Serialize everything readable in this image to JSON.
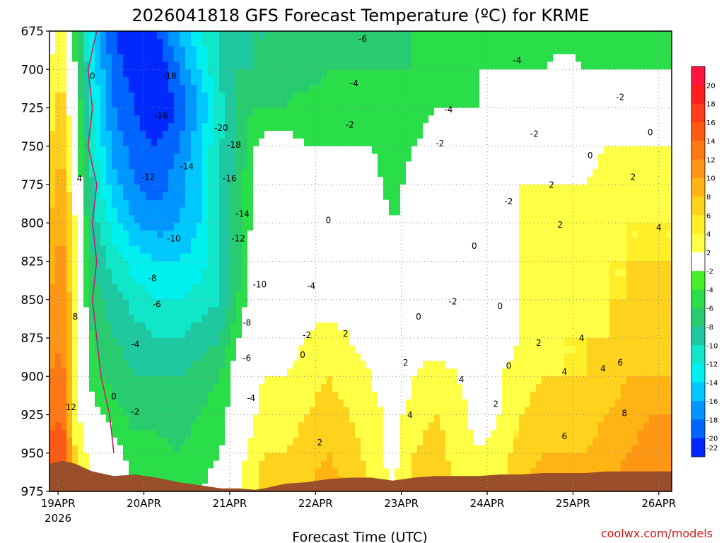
{
  "chart_data": {
    "type": "heatmap",
    "title": "2026041818 GFS Forecast Temperature (ºC) for KRME",
    "xlabel": "Forecast Time (UTC)",
    "ylabel": "",
    "credit": "coolwx.com/models",
    "y_axis": {
      "ticks": [
        675,
        700,
        725,
        750,
        775,
        800,
        825,
        850,
        875,
        900,
        925,
        950,
        975
      ],
      "range": [
        675,
        975
      ]
    },
    "x_axis": {
      "ticks": [
        "19APR",
        "20APR",
        "21APR",
        "22APR",
        "23APR",
        "24APR",
        "25APR",
        "26APR"
      ],
      "first_tick_sublabel": "2026"
    },
    "colorbar": {
      "levels": [
        20,
        18,
        16,
        14,
        12,
        10,
        8,
        6,
        4,
        2,
        -2,
        -4,
        -6,
        -8,
        -10,
        -12,
        -14,
        -16,
        -18,
        -20,
        -22
      ],
      "labels": [
        "20",
        "18",
        "16",
        "14",
        "12",
        "10",
        "8",
        "6",
        "4",
        "2",
        "-2",
        "-4",
        "-6",
        "-8",
        "-10",
        "-12",
        "-14",
        "-16",
        "-18",
        "-20",
        "-22"
      ],
      "colors": [
        "#ff1540",
        "#ff1e1e",
        "#ff3c1c",
        "#ff5a14",
        "#ff7814",
        "#ff9614",
        "#ffb414",
        "#ffd21e",
        "#ffee28",
        "#ffff46",
        "#ffffff",
        "#46f028",
        "#2ade4a",
        "#28cc6e",
        "#1ec8a0",
        "#10e6c8",
        "#00f0f0",
        "#00c8ff",
        "#0096ff",
        "#0064ff",
        "#0028ff"
      ]
    },
    "time_values": [
      0,
      0.15,
      0.3,
      0.5,
      0.75,
      1.0,
      1.25,
      1.5,
      1.75,
      2.0,
      2.2,
      2.4,
      2.5,
      2.75,
      3.0,
      3.25,
      3.5,
      3.75,
      4.0,
      4.25,
      4.5,
      4.75,
      5.0,
      5.25,
      5.5,
      5.75,
      6.0,
      6.25,
      6.5,
      6.75,
      7.0,
      7.25
    ],
    "pressure_levels": [
      675,
      700,
      725,
      750,
      775,
      800,
      825,
      850,
      875,
      900,
      925,
      950,
      975
    ],
    "temperature_grid": [
      [
        1,
        3,
        -3,
        -12,
        -18,
        -20,
        -18,
        -14,
        -10,
        -8,
        -7,
        -6,
        -6,
        -6,
        -5,
        -5,
        -5,
        -5,
        -5,
        -4,
        -4,
        -3,
        -3,
        -3,
        -3,
        -3,
        -3,
        -3,
        -3,
        -3,
        -3,
        -3
      ],
      [
        2,
        4,
        -2,
        -11,
        -17,
        -19,
        -20,
        -16,
        -12,
        -7,
        -6,
        -6,
        -6,
        -5,
        -5,
        -4,
        -4,
        -4,
        -4,
        -4,
        -3,
        -3,
        -2,
        -2,
        -2,
        -2,
        -1,
        -2,
        -2,
        -2,
        -2,
        -2
      ],
      [
        3,
        5,
        -1,
        -10,
        -16,
        -18,
        -20,
        -18,
        -14,
        -9,
        -5,
        -4,
        -4,
        -4,
        -3,
        -3,
        -3,
        -3,
        -3,
        -3,
        -2,
        -2,
        -2,
        -1,
        -1,
        -1,
        0,
        -1,
        -1,
        -1,
        -1,
        -1
      ],
      [
        4,
        6,
        0,
        -9,
        -15,
        -17,
        -18,
        -16,
        -12,
        -8,
        -6,
        -2,
        -1,
        -1,
        -2,
        -2,
        -2,
        -2,
        -3,
        -2,
        -1,
        -1,
        -2,
        0,
        1,
        1,
        1,
        1,
        2,
        2,
        2,
        2
      ],
      [
        5,
        7,
        1,
        -8,
        -13,
        -16,
        -17,
        -15,
        -12,
        -8,
        -5,
        -1,
        0,
        0,
        0,
        1,
        -1,
        -1,
        -3,
        -1,
        0,
        0,
        -2,
        1,
        2,
        2,
        2,
        2,
        3,
        3,
        3,
        3
      ],
      [
        6,
        8,
        2,
        -7,
        -11,
        -14,
        -15,
        -14,
        -12,
        -8,
        -5,
        -1,
        0,
        1,
        1,
        1,
        0,
        0,
        -2,
        -1,
        0,
        0,
        -1,
        1,
        2,
        3,
        3,
        3,
        3,
        4,
        4,
        4
      ],
      [
        7,
        9,
        2,
        -6,
        -9,
        -11,
        -12,
        -12,
        -11,
        -8,
        -5,
        0,
        1,
        1,
        1,
        1,
        0,
        0,
        -2,
        0,
        0,
        0,
        -1,
        1,
        2,
        3,
        3,
        3,
        4,
        4,
        4,
        4
      ],
      [
        8,
        10,
        3,
        -5,
        -7,
        -9,
        -10,
        -10,
        -9,
        -8,
        -4,
        1,
        2,
        1,
        1,
        1,
        1,
        1,
        -1,
        0,
        0,
        0,
        0,
        1,
        2,
        3,
        3,
        3,
        4,
        4,
        5,
        5
      ],
      [
        9,
        10,
        3,
        -4,
        -6,
        -7,
        -8,
        -8,
        -7,
        -6,
        -2,
        1,
        2,
        1,
        2,
        3,
        2,
        1,
        0,
        1,
        1,
        1,
        1,
        1,
        2,
        3,
        4,
        4,
        4,
        5,
        5,
        5
      ],
      [
        10,
        11,
        3,
        -3,
        -5,
        -6,
        -6,
        -6,
        -5,
        -4,
        0,
        1,
        2,
        2,
        3,
        4,
        3,
        2,
        0,
        2,
        3,
        2,
        1,
        2,
        3,
        4,
        4,
        4,
        5,
        6,
        6,
        6
      ],
      [
        11,
        12,
        3,
        -1,
        -3,
        -5,
        -5,
        -5,
        -4,
        -3,
        0,
        2,
        3,
        3,
        4,
        5,
        4,
        3,
        1,
        3,
        4,
        3,
        1,
        2,
        4,
        5,
        5,
        5,
        6,
        7,
        8,
        8
      ],
      [
        13,
        14,
        4,
        1,
        -1,
        -3,
        -3,
        -4,
        -3,
        -2,
        1,
        3,
        4,
        4,
        5,
        6,
        5,
        3,
        1,
        4,
        5,
        3,
        2,
        3,
        5,
        6,
        6,
        6,
        7,
        8,
        9,
        9
      ],
      [
        14,
        15,
        4,
        2,
        0,
        -2,
        -2,
        -3,
        -2,
        -1,
        2,
        4,
        5,
        5,
        6,
        7,
        6,
        4,
        2,
        5,
        6,
        4,
        3,
        4,
        6,
        7,
        7,
        7,
        8,
        9,
        10,
        10
      ]
    ],
    "terrain_pressure": [
      957,
      955,
      957,
      962,
      965,
      964,
      966,
      969,
      971,
      973,
      973,
      974,
      973,
      970,
      969,
      967,
      966,
      966,
      968,
      966,
      965,
      965,
      965,
      964,
      964,
      963,
      963,
      963,
      962,
      962,
      962,
      962
    ],
    "freezing_line": [
      [
        0.55,
        675
      ],
      [
        0.45,
        700
      ],
      [
        0.5,
        725
      ],
      [
        0.45,
        750
      ],
      [
        0.55,
        775
      ],
      [
        0.5,
        800
      ],
      [
        0.55,
        825
      ],
      [
        0.5,
        850
      ],
      [
        0.55,
        875
      ],
      [
        0.6,
        900
      ],
      [
        0.7,
        925
      ],
      [
        0.75,
        950
      ]
    ],
    "contour_labels": [
      {
        "text": "0",
        "t": 0.5,
        "p": 706
      },
      {
        "text": "4",
        "t": 0.35,
        "p": 773
      },
      {
        "text": "8",
        "t": 0.3,
        "p": 863
      },
      {
        "text": "12",
        "t": 0.25,
        "p": 922
      },
      {
        "text": "0",
        "t": 0.75,
        "p": 915
      },
      {
        "text": "-2",
        "t": 1.0,
        "p": 925
      },
      {
        "text": "-18",
        "t": 1.4,
        "p": 706
      },
      {
        "text": "-16",
        "t": 1.3,
        "p": 732
      },
      {
        "text": "-14",
        "t": 1.6,
        "p": 765
      },
      {
        "text": "-12",
        "t": 1.15,
        "p": 772
      },
      {
        "text": "-10",
        "t": 1.45,
        "p": 812
      },
      {
        "text": "-8",
        "t": 1.2,
        "p": 838
      },
      {
        "text": "-6",
        "t": 1.25,
        "p": 855
      },
      {
        "text": "-4",
        "t": 1.0,
        "p": 881
      },
      {
        "text": "-20",
        "t": 2.0,
        "p": 740
      },
      {
        "text": "-18",
        "t": 2.15,
        "p": 751
      },
      {
        "text": "-16",
        "t": 2.1,
        "p": 773
      },
      {
        "text": "-14",
        "t": 2.25,
        "p": 796
      },
      {
        "text": "-12",
        "t": 2.2,
        "p": 812
      },
      {
        "text": "-10",
        "t": 2.45,
        "p": 842
      },
      {
        "text": "-8",
        "t": 2.3,
        "p": 867
      },
      {
        "text": "-6",
        "t": 2.3,
        "p": 890
      },
      {
        "text": "-4",
        "t": 2.35,
        "p": 916
      },
      {
        "text": "-6",
        "t": 3.65,
        "p": 682
      },
      {
        "text": "-4",
        "t": 3.55,
        "p": 711
      },
      {
        "text": "-2",
        "t": 3.5,
        "p": 738
      },
      {
        "text": "-4",
        "t": 3.05,
        "p": 843
      },
      {
        "text": "-2",
        "t": 3.0,
        "p": 875
      },
      {
        "text": "0",
        "t": 2.95,
        "p": 888
      },
      {
        "text": "2",
        "t": 3.45,
        "p": 874
      },
      {
        "text": "2",
        "t": 3.15,
        "p": 945
      },
      {
        "text": "0",
        "t": 3.25,
        "p": 800
      },
      {
        "text": "-2",
        "t": 4.55,
        "p": 750
      },
      {
        "text": "-4",
        "t": 4.65,
        "p": 728
      },
      {
        "text": "2",
        "t": 4.15,
        "p": 893
      },
      {
        "text": "4",
        "t": 4.2,
        "p": 927
      },
      {
        "text": "0",
        "t": 4.3,
        "p": 863
      },
      {
        "text": "-2",
        "t": 4.7,
        "p": 853
      },
      {
        "text": "0",
        "t": 4.95,
        "p": 817
      },
      {
        "text": "4",
        "t": 4.8,
        "p": 904
      },
      {
        "text": "2",
        "t": 5.2,
        "p": 920
      },
      {
        "text": "0",
        "t": 5.35,
        "p": 895
      },
      {
        "text": "-4",
        "t": 5.45,
        "p": 696
      },
      {
        "text": "-2",
        "t": 5.65,
        "p": 744
      },
      {
        "text": "-2",
        "t": 5.35,
        "p": 788
      },
      {
        "text": "2",
        "t": 5.85,
        "p": 777
      },
      {
        "text": "2",
        "t": 5.95,
        "p": 803
      },
      {
        "text": "0",
        "t": 6.3,
        "p": 758
      },
      {
        "text": "-2",
        "t": 6.65,
        "p": 720
      },
      {
        "text": "0",
        "t": 7.0,
        "p": 743
      },
      {
        "text": "2",
        "t": 6.8,
        "p": 772
      },
      {
        "text": "4",
        "t": 7.1,
        "p": 805
      },
      {
        "text": "2",
        "t": 5.7,
        "p": 880
      },
      {
        "text": "4",
        "t": 6.0,
        "p": 899
      },
      {
        "text": "6",
        "t": 6.0,
        "p": 941
      },
      {
        "text": "0",
        "t": 5.25,
        "p": 856
      },
      {
        "text": "4",
        "t": 6.2,
        "p": 877
      },
      {
        "text": "4",
        "t": 6.45,
        "p": 897
      },
      {
        "text": "6",
        "t": 6.65,
        "p": 893
      },
      {
        "text": "8",
        "t": 6.7,
        "p": 926
      }
    ]
  }
}
